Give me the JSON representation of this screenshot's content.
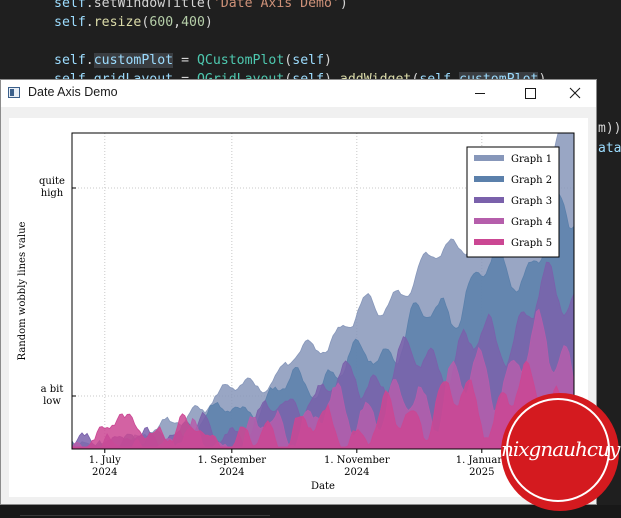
{
  "editor": {
    "lines": [
      {
        "tokens": [
          {
            "t": "self",
            "c": "c-self"
          },
          {
            "t": ".setWindowTitle(",
            "c": ""
          },
          {
            "t": "'Date Axis Demo'",
            "c": "c-str"
          },
          {
            "t": ")",
            "c": ""
          }
        ]
      },
      {
        "tokens": [
          {
            "t": "self",
            "c": "c-self"
          },
          {
            "t": ".",
            "c": ""
          },
          {
            "t": "resize",
            "c": "c-fn"
          },
          {
            "t": "(",
            "c": ""
          },
          {
            "t": "600",
            "c": "c-num"
          },
          {
            "t": ",",
            "c": ""
          },
          {
            "t": "400",
            "c": "c-num"
          },
          {
            "t": ")",
            "c": ""
          }
        ]
      },
      {
        "tokens": []
      },
      {
        "tokens": [
          {
            "t": "self",
            "c": "c-self"
          },
          {
            "t": ".",
            "c": ""
          },
          {
            "t": "customPlot",
            "c": "c-kw hl"
          },
          {
            "t": " = ",
            "c": ""
          },
          {
            "t": "QCustomPlot",
            "c": "c-cls"
          },
          {
            "t": "(",
            "c": ""
          },
          {
            "t": "self",
            "c": "c-self"
          },
          {
            "t": ")",
            "c": ""
          }
        ]
      },
      {
        "tokens": [
          {
            "t": "self",
            "c": "c-self"
          },
          {
            "t": ".",
            "c": ""
          },
          {
            "t": "gridLayout",
            "c": "c-kw"
          },
          {
            "t": " = ",
            "c": ""
          },
          {
            "t": "QGridLayout",
            "c": "c-cls"
          },
          {
            "t": "(",
            "c": ""
          },
          {
            "t": "self",
            "c": "c-self"
          },
          {
            "t": ").",
            "c": ""
          },
          {
            "t": "addWidget",
            "c": "c-fn"
          },
          {
            "t": "(",
            "c": ""
          },
          {
            "t": "self",
            "c": "c-self"
          },
          {
            "t": ".",
            "c": ""
          },
          {
            "t": "customPlot",
            "c": "c-kw hl"
          },
          {
            "t": ")",
            "c": ""
          }
        ]
      }
    ],
    "right_fragments": [
      {
        "text": "m))",
        "color": "#d4d4d4"
      },
      {
        "text": "ata",
        "color": "#9cdcfe"
      }
    ]
  },
  "window": {
    "title": "Date Axis Demo",
    "minimize_icon": "minimize-icon",
    "maximize_icon": "maximize-icon",
    "close_icon": "close-icon"
  },
  "chart_data": {
    "type": "area",
    "xlabel": "Date",
    "ylabel": "Random wobbly lines value",
    "x_ticks": [
      {
        "line1": "1. July",
        "line2": "2024"
      },
      {
        "line1": "1. September",
        "line2": "2024"
      },
      {
        "line1": "1. November",
        "line2": "2024"
      },
      {
        "line1": "1. January",
        "line2": "2025"
      }
    ],
    "y_ticks": [
      {
        "line1": "a bit",
        "line2": "low"
      },
      {
        "line1": "quite",
        "line2": "high"
      }
    ],
    "x_range": [
      "2024-06-15",
      "2025-02-15"
    ],
    "grid": true,
    "legend_position": "top-right",
    "series": [
      {
        "name": "Graph 1",
        "color": "#8797ba"
      },
      {
        "name": "Graph 2",
        "color": "#5b80ab"
      },
      {
        "name": "Graph 3",
        "color": "#7a61ab"
      },
      {
        "name": "Graph 4",
        "color": "#b55eab"
      },
      {
        "name": "Graph 5",
        "color": "#cb4793"
      }
    ]
  },
  "stamp": {
    "text": "nixgnauhcuy"
  }
}
